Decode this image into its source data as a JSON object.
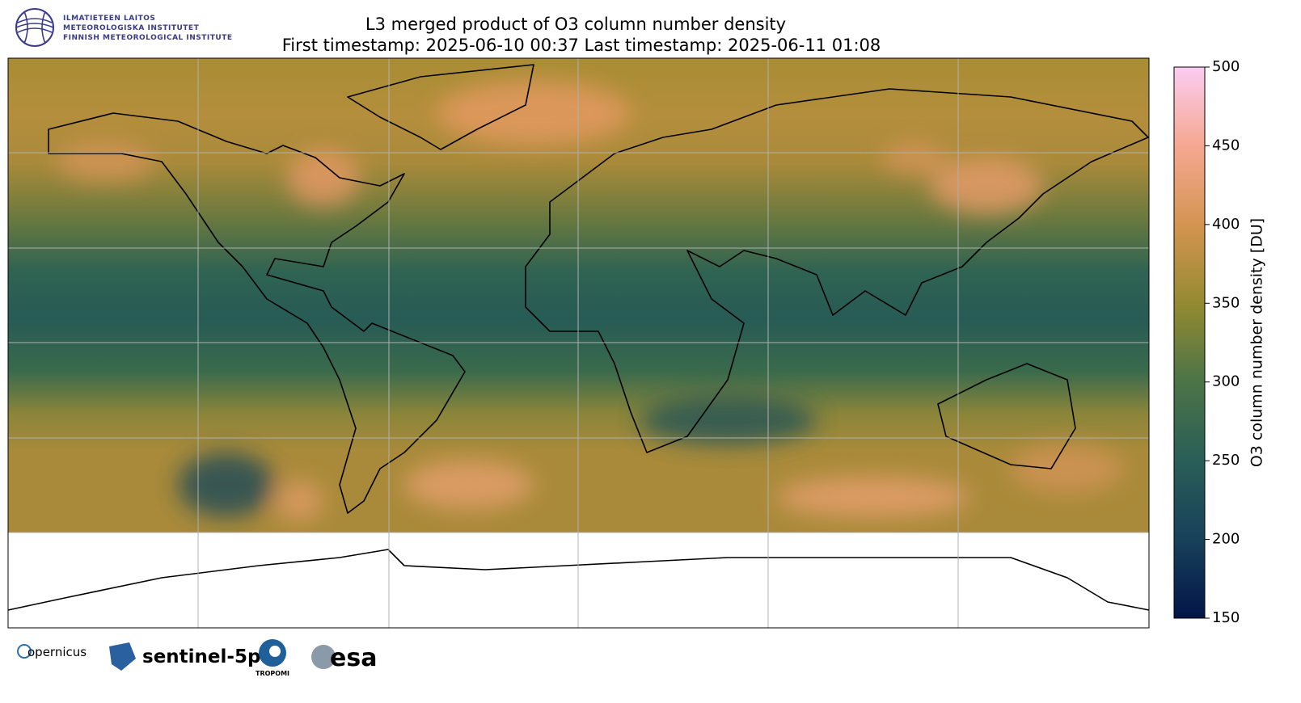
{
  "header": {
    "title": "L3 merged product of O3 column number density",
    "subtitle": "First timestamp: 2025-06-10 00:37   Last timestamp: 2025-06-11 01:08",
    "institute": [
      "ILMATIETEEN LAITOS",
      "METEOROLOGISKA INSTITUTET",
      "FINNISH METEOROLOGICAL INSTITUTE"
    ]
  },
  "colorbar": {
    "label": "O3 column number density [DU]",
    "lim": [
      150,
      500
    ],
    "ticks": [
      150,
      200,
      250,
      300,
      350,
      400,
      450,
      500
    ]
  },
  "footer": {
    "logos": [
      "opernicus",
      "sentinel-5p",
      "TROPOMI",
      "esa"
    ]
  }
}
